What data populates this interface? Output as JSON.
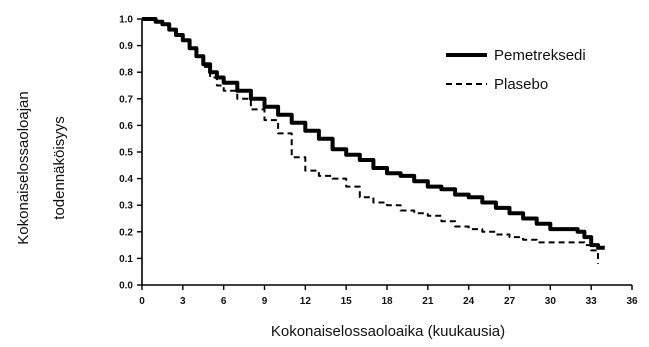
{
  "chart_data": {
    "type": "line",
    "title": "",
    "xlabel": "Kokonaiselossaoloaika (kuukausia)",
    "ylabel_line1": "Kokonaiselossaoloajan",
    "ylabel_line2": "todennäköisyys",
    "xlim": [
      0,
      36
    ],
    "ylim": [
      0,
      1.0
    ],
    "x_ticks": [
      "0",
      "3",
      "6",
      "9",
      "12",
      "15",
      "18",
      "21",
      "24",
      "27",
      "30",
      "33",
      "36"
    ],
    "y_ticks": [
      "0.0",
      "0.1",
      "0.2",
      "0.3",
      "0.4",
      "0.5",
      "0.6",
      "0.7",
      "0.8",
      "0.9",
      "1.0"
    ],
    "grid": false,
    "legend_position": "top-right",
    "series": [
      {
        "name": "Pemetreksedi",
        "style": "solid",
        "color": "#000000",
        "x": [
          0,
          0.5,
          1,
          1.5,
          2,
          2.5,
          3,
          3.5,
          4,
          4.5,
          5,
          5.5,
          6,
          7,
          8,
          9,
          10,
          11,
          12,
          13,
          14,
          15,
          16,
          17,
          18,
          19,
          20,
          21,
          22,
          23,
          24,
          25,
          26,
          27,
          28,
          29,
          30,
          31,
          32,
          32.5,
          33,
          33.5,
          34
        ],
        "y": [
          1.0,
          1.0,
          0.99,
          0.98,
          0.96,
          0.94,
          0.92,
          0.89,
          0.86,
          0.83,
          0.8,
          0.78,
          0.76,
          0.73,
          0.7,
          0.67,
          0.64,
          0.61,
          0.58,
          0.55,
          0.51,
          0.49,
          0.47,
          0.44,
          0.42,
          0.41,
          0.39,
          0.37,
          0.36,
          0.34,
          0.33,
          0.31,
          0.29,
          0.27,
          0.25,
          0.23,
          0.21,
          0.21,
          0.2,
          0.18,
          0.15,
          0.14,
          0.14
        ]
      },
      {
        "name": "Plasebo",
        "style": "dashed",
        "color": "#000000",
        "x": [
          0,
          0.5,
          1,
          1.5,
          2,
          2.5,
          3,
          3.5,
          4,
          4.5,
          5,
          5.5,
          6,
          7,
          8,
          9,
          10,
          11,
          12,
          13,
          14,
          15,
          16,
          17,
          18,
          19,
          20,
          21,
          22,
          23,
          24,
          25,
          26,
          27,
          28,
          29,
          30,
          31,
          32,
          32.5,
          33,
          33.5
        ],
        "y": [
          1.0,
          1.0,
          0.99,
          0.98,
          0.96,
          0.94,
          0.92,
          0.89,
          0.86,
          0.82,
          0.78,
          0.75,
          0.73,
          0.7,
          0.66,
          0.62,
          0.57,
          0.48,
          0.43,
          0.41,
          0.4,
          0.37,
          0.33,
          0.31,
          0.3,
          0.28,
          0.27,
          0.26,
          0.24,
          0.22,
          0.21,
          0.2,
          0.19,
          0.18,
          0.17,
          0.16,
          0.16,
          0.16,
          0.16,
          0.15,
          0.13,
          0.08
        ]
      }
    ]
  }
}
